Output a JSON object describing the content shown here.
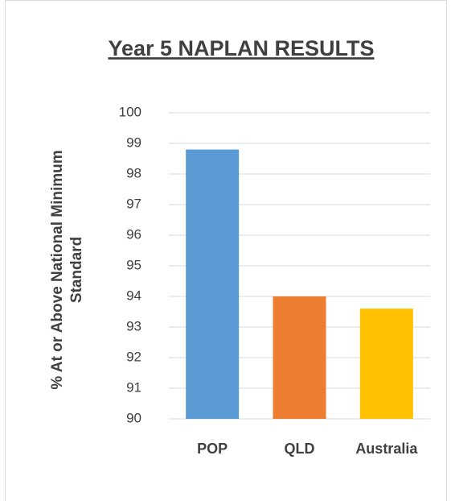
{
  "chart_data": {
    "type": "bar",
    "title": "Year 5 NAPLAN RESULTS",
    "ylabel": [
      "% At or Above National Minimum",
      "Standard"
    ],
    "categories": [
      "POP",
      "QLD",
      "Australia"
    ],
    "values": [
      98.8,
      94.0,
      93.6
    ],
    "colors": [
      "#5b9bd5",
      "#ed7d31",
      "#ffc000"
    ],
    "ylim": [
      90,
      100
    ],
    "yticks": [
      90,
      91,
      92,
      93,
      94,
      95,
      96,
      97,
      98,
      99,
      100
    ],
    "grid": true
  }
}
